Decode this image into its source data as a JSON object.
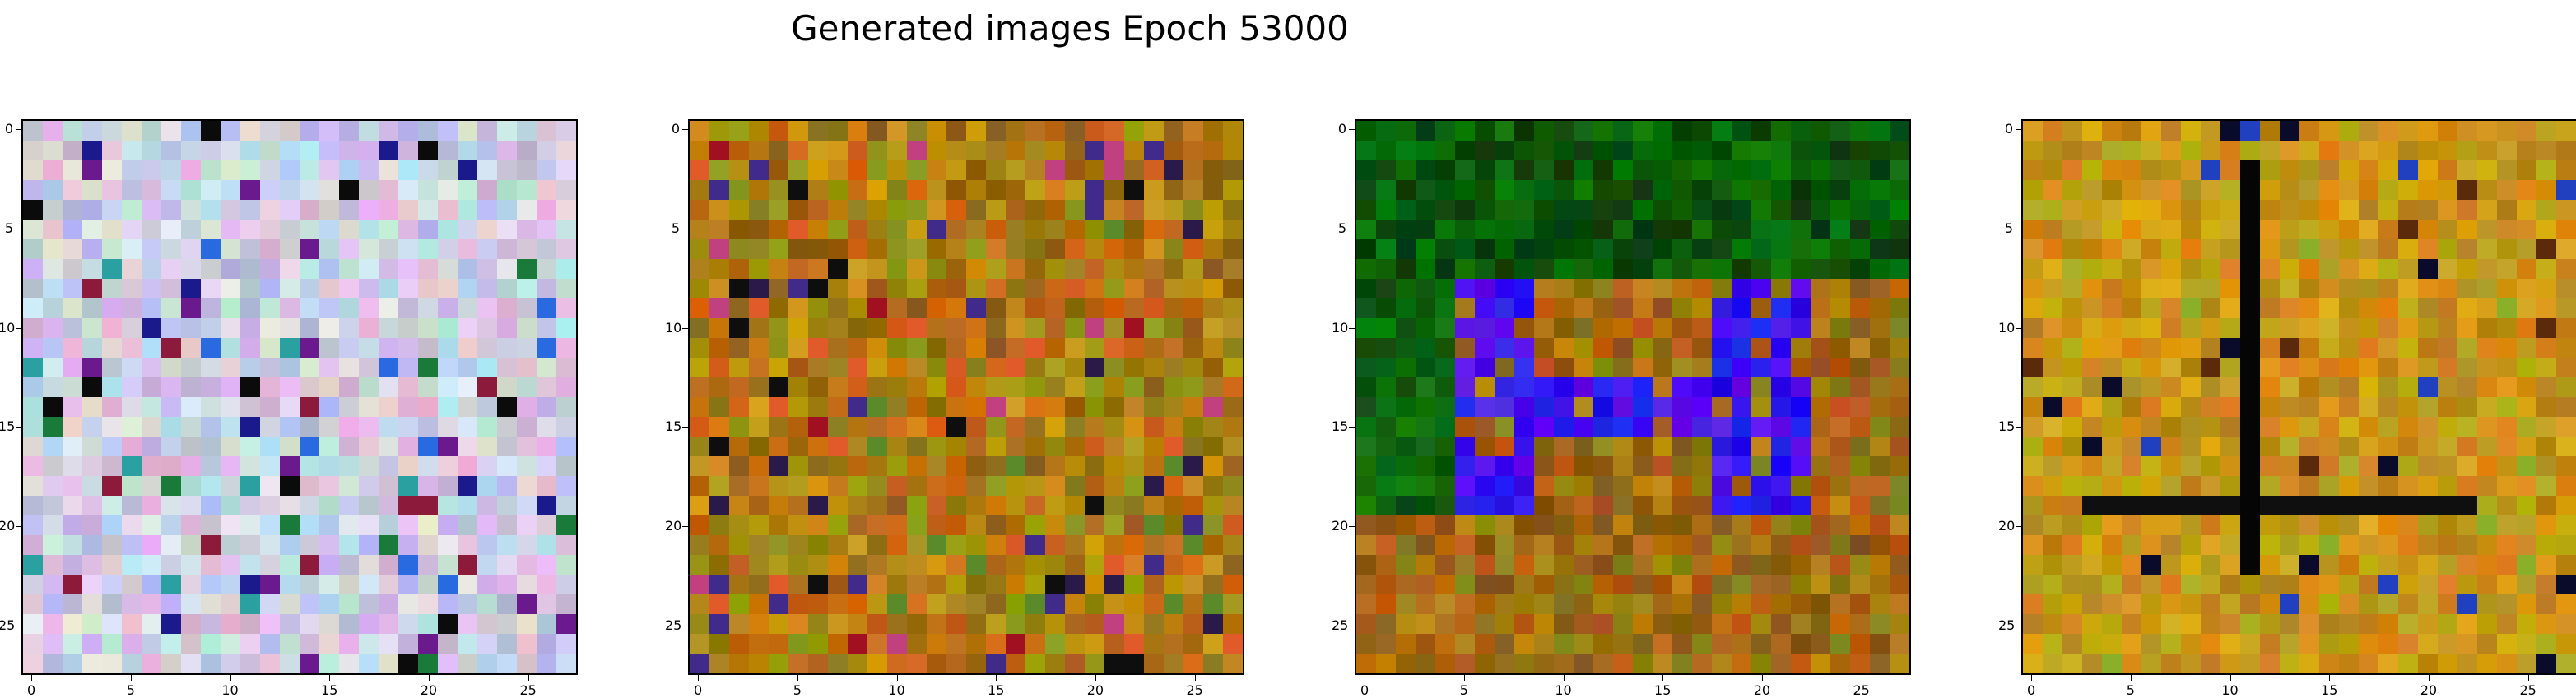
{
  "figure": {
    "title": "Generated images Epoch 53000"
  },
  "chart_data": [
    {
      "type": "heatmap",
      "palette": "pastel",
      "image_size": 28,
      "seed": 11,
      "xticks": [
        "0",
        "5",
        "10",
        "15",
        "20",
        "25"
      ],
      "yticks": [
        "0",
        "5",
        "10",
        "15",
        "20",
        "25"
      ]
    },
    {
      "type": "heatmap",
      "palette": "olive",
      "image_size": 28,
      "seed": 29,
      "xticks": [
        "0",
        "5",
        "10",
        "15",
        "20",
        "25"
      ],
      "yticks": [
        "0",
        "5",
        "10",
        "15",
        "20",
        "25"
      ]
    },
    {
      "type": "heatmap",
      "palette": "green-blue",
      "image_size": 28,
      "seed": 47,
      "xticks": [
        "0",
        "5",
        "10",
        "15",
        "20",
        "25"
      ],
      "yticks": [
        "0",
        "5",
        "10",
        "15",
        "20",
        "25"
      ]
    },
    {
      "type": "heatmap",
      "palette": "amber",
      "image_size": 28,
      "seed": 83,
      "xticks": [
        "0",
        "5",
        "10",
        "15",
        "20",
        "25"
      ],
      "yticks": [
        "0",
        "5",
        "10",
        "15",
        "20",
        "25"
      ]
    }
  ]
}
